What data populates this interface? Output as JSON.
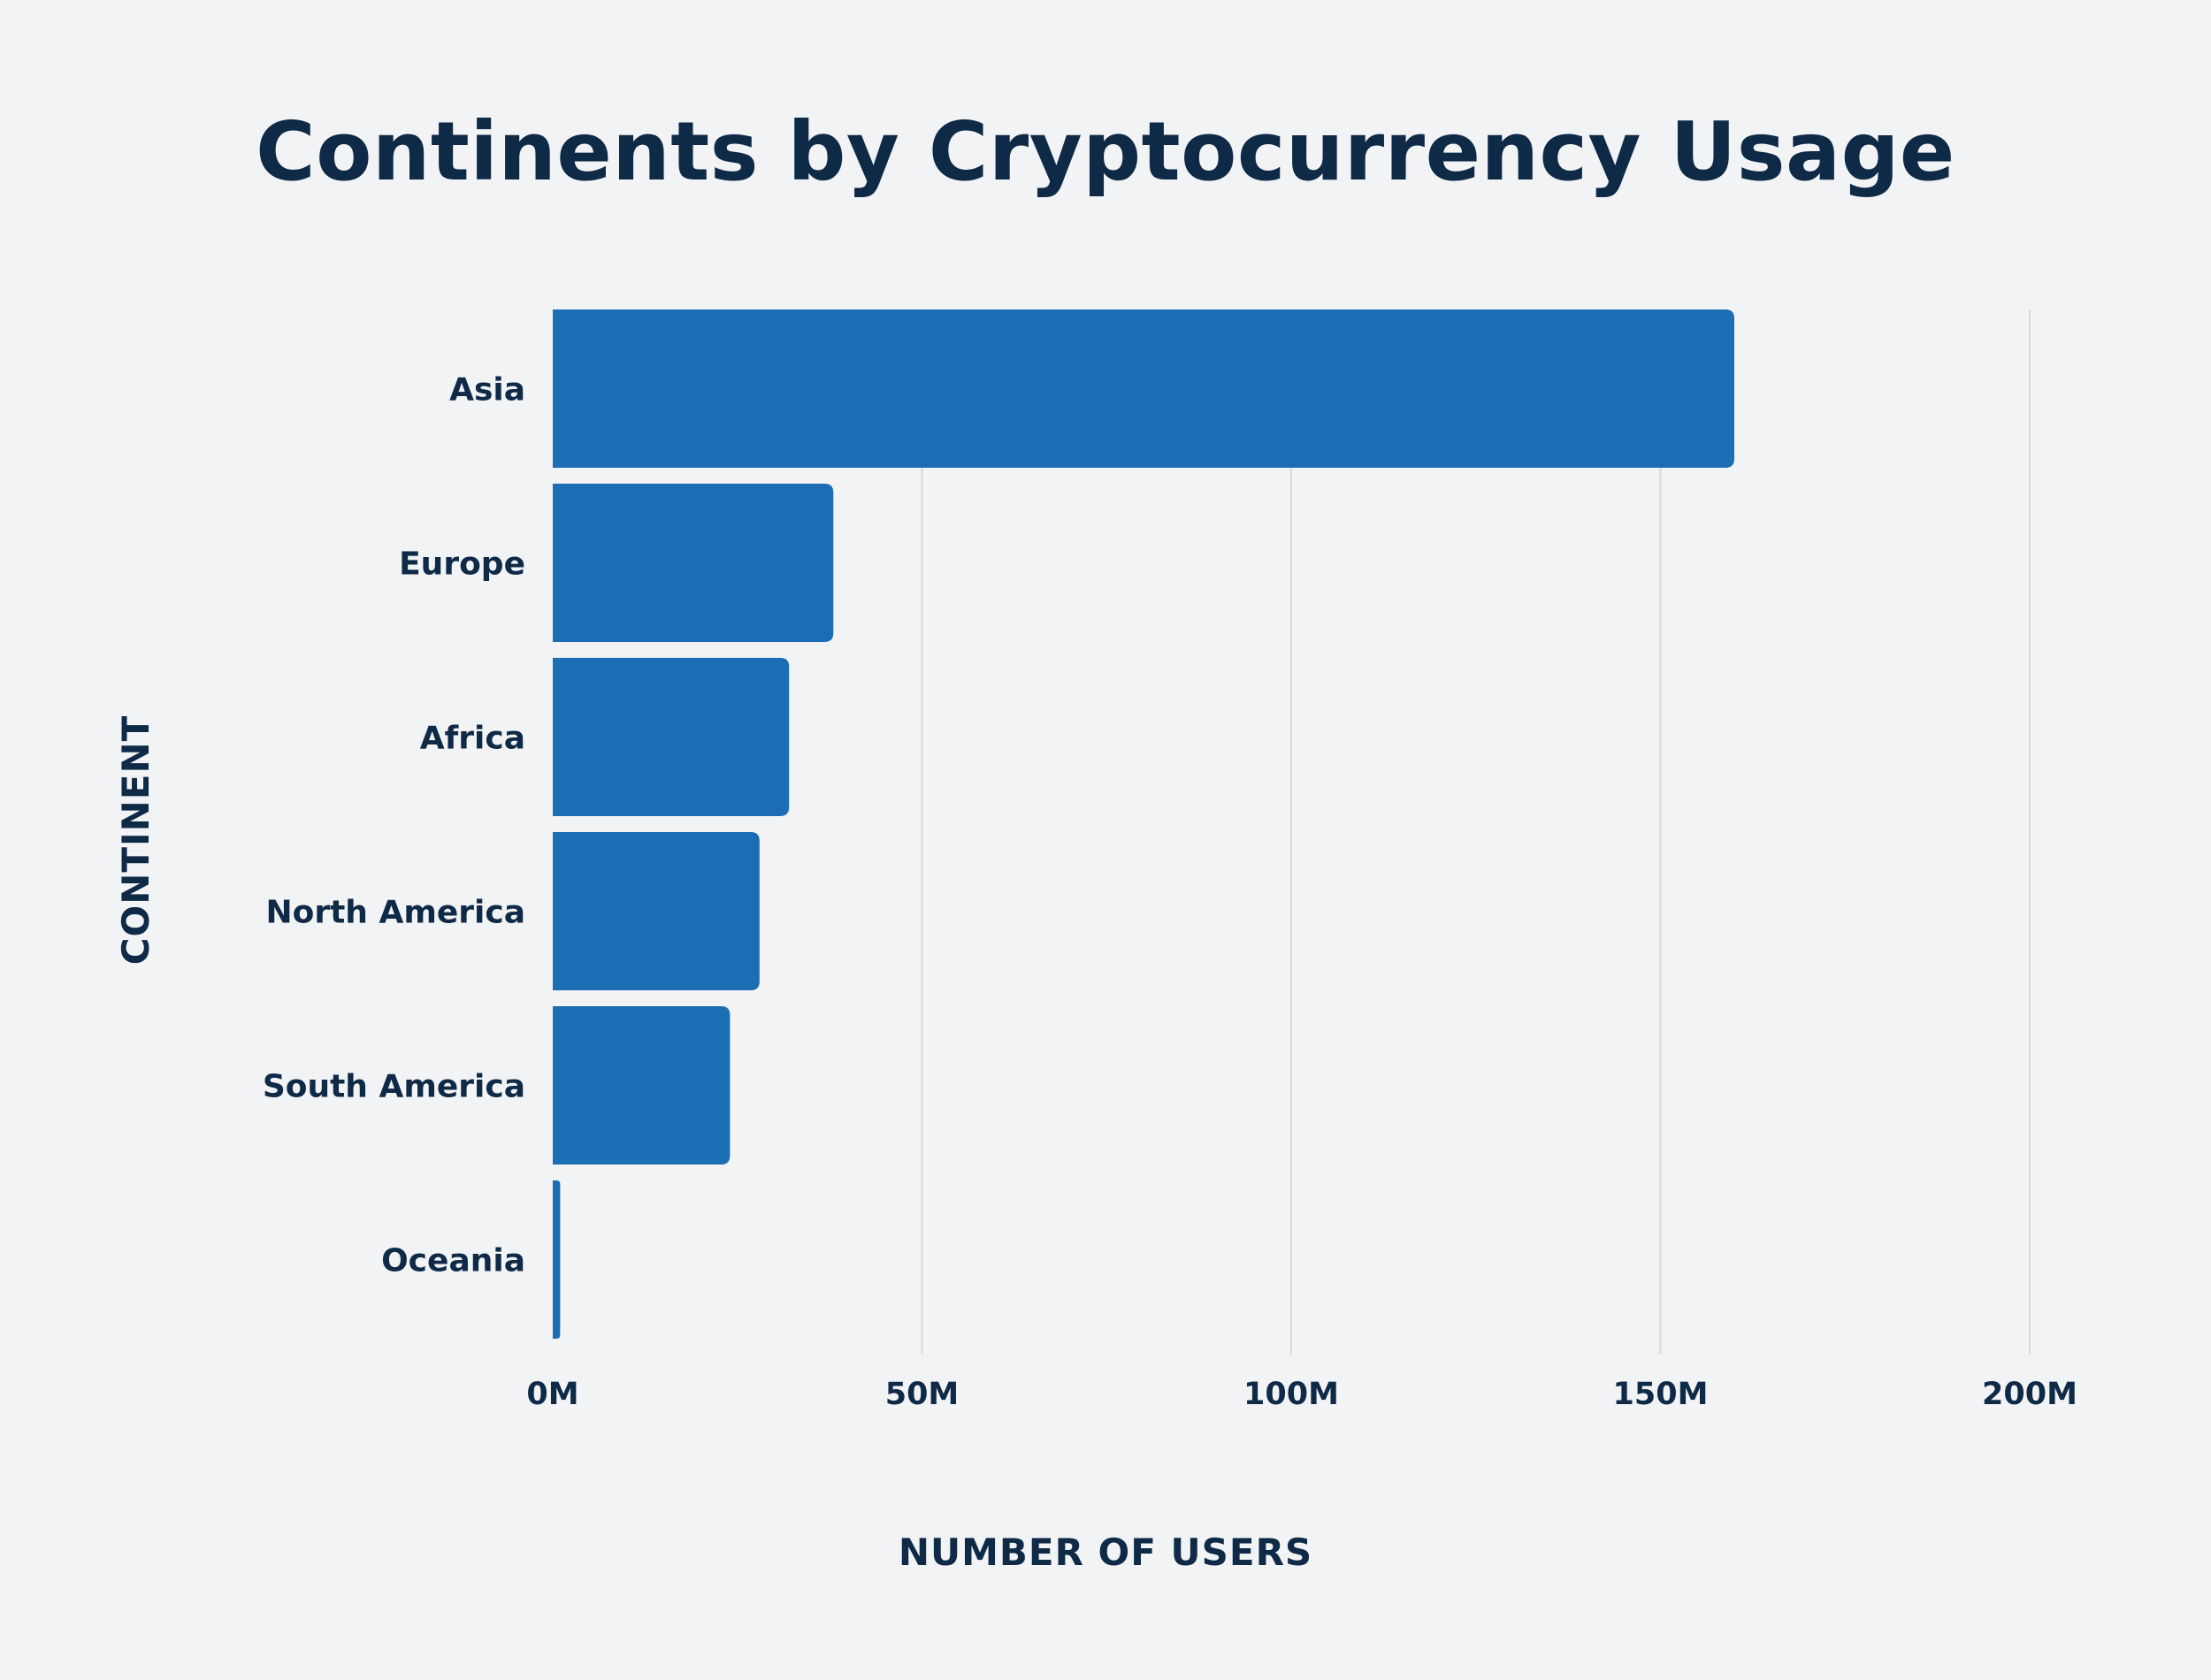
{
  "chart_data": {
    "type": "bar",
    "orientation": "horizontal",
    "title": "Continents by Cryptocurrency Usage",
    "xlabel": "NUMBER OF USERS",
    "ylabel": "CONTINENT",
    "categories": [
      "Asia",
      "Europe",
      "Africa",
      "North America",
      "South America",
      "Oceania"
    ],
    "values": [
      160,
      38,
      32,
      28,
      24,
      1
    ],
    "value_unit": "M",
    "xlim": [
      0,
      200
    ],
    "xticks": [
      0,
      50,
      100,
      150,
      200
    ],
    "xtick_labels": [
      "0M",
      "50M",
      "100M",
      "150M",
      "200M"
    ],
    "grid": "vertical",
    "bar_color": "#1b6db4",
    "text_color": "#0e2a47",
    "background": "#f2f3f5"
  }
}
